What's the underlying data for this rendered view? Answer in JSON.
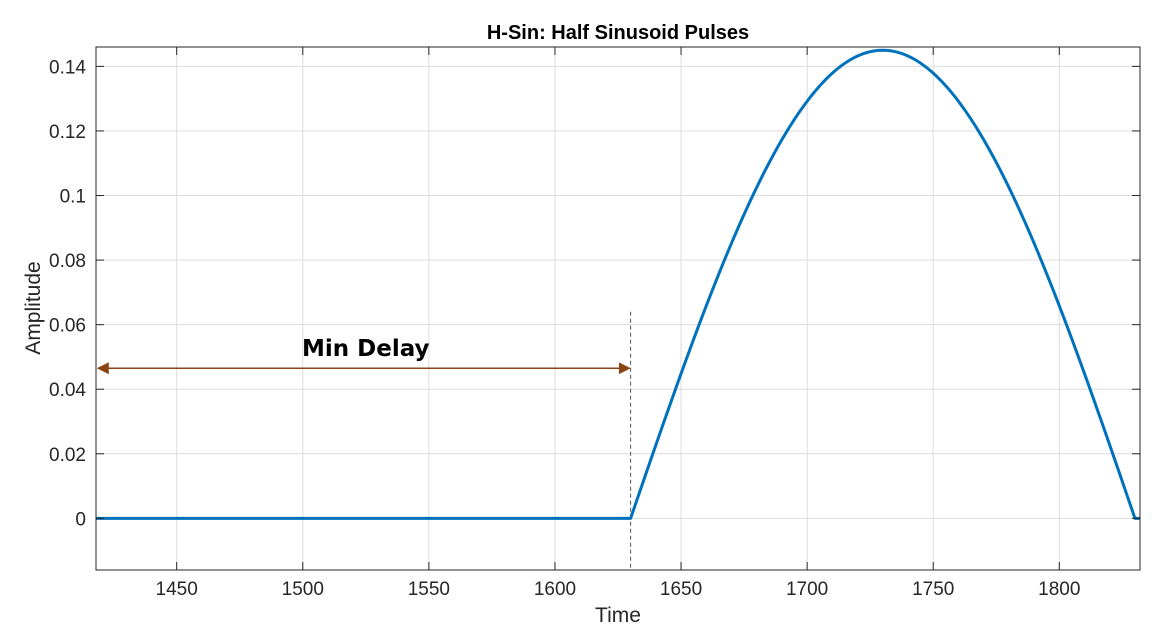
{
  "chart_data": {
    "type": "line",
    "title": "H-Sin: Half Sinusoid Pulses",
    "xlabel": "Time",
    "ylabel": "Amplitude",
    "xlim": [
      1418,
      1832
    ],
    "ylim": [
      -0.016,
      0.146
    ],
    "xticks": [
      1450,
      1500,
      1550,
      1600,
      1650,
      1700,
      1750,
      1800
    ],
    "yticks": [
      0,
      0.02,
      0.04,
      0.06,
      0.08,
      0.1,
      0.12,
      0.14
    ],
    "ytick_labels": [
      "0",
      "0.02",
      "0.04",
      "0.06",
      "0.08",
      "0.1",
      "0.12",
      "0.14"
    ],
    "grid": true,
    "series": [
      {
        "color": "#0072BD",
        "pulse": {
          "start": 1630,
          "end": 1830,
          "peak_x": 1730,
          "amplitude": 0.145
        },
        "x": [
          1418,
          1630,
          1640,
          1650,
          1660,
          1670,
          1680,
          1690,
          1700,
          1710,
          1720,
          1730,
          1740,
          1750,
          1760,
          1770,
          1780,
          1790,
          1800,
          1810,
          1820,
          1830,
          1832
        ],
        "y": [
          0,
          0,
          0.0227,
          0.0448,
          0.0658,
          0.0852,
          0.1025,
          0.1173,
          0.1291,
          0.1379,
          0.1432,
          0.145,
          0.1432,
          0.1379,
          0.1291,
          0.1173,
          0.1025,
          0.0852,
          0.0658,
          0.0448,
          0.0227,
          0,
          0
        ]
      }
    ],
    "annotations": [
      {
        "text": "Min Delay",
        "arrow_from_x": 1418,
        "arrow_to_x": 1630,
        "arrow_y": 0.0465,
        "marker_line_x": 1630,
        "marker_line_top_y": 0.064,
        "color": "#8B4513"
      }
    ]
  }
}
